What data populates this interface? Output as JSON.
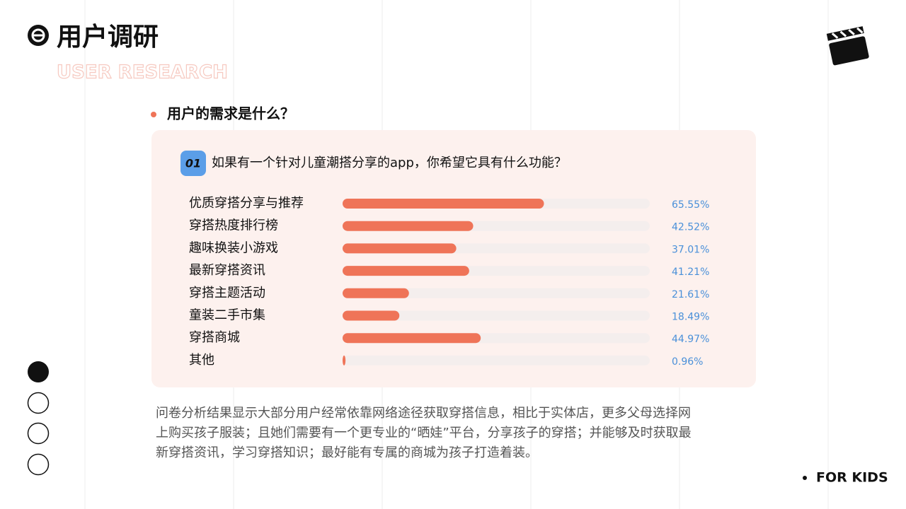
{
  "header": {
    "title": "用户调研",
    "subtitle": "USER RESEARCH"
  },
  "section": {
    "heading": "用户的需求是什么？"
  },
  "question": {
    "number": "01",
    "text": "如果有一个针对儿童潮搭分享的app，你希望它具有什么功能？"
  },
  "chart_data": {
    "type": "bar",
    "orientation": "horizontal",
    "categories": [
      "优质穿搭分享与推荐",
      "穿搭热度排行榜",
      "趣味换装小游戏",
      "最新穿搭资讯",
      "穿搭主题活动",
      "童装二手市集",
      "穿搭商城",
      "其他"
    ],
    "values": [
      65.55,
      42.52,
      37.01,
      41.21,
      21.61,
      18.49,
      44.97,
      0.96
    ],
    "value_labels": [
      "65.55%",
      "42.52%",
      "37.01%",
      "41.21%",
      "21.61%",
      "18.49%",
      "44.97%",
      "0.96%"
    ],
    "xlim": [
      0,
      100
    ],
    "color": "#ef7458",
    "track_color": "#f4eeed",
    "label_color": "#4a90d9"
  },
  "paragraph": {
    "lines": [
      "问卷分析结果显示大部分用户经常依靠网络途径获取穿搭信息，相比于实体店，更多父母选择网",
      "上购买孩子服装；且她们需要有一个更专业的“晒娃”平台，分享孩子的穿搭；并能够及时获取最",
      "新穿搭资讯，学习穿搭知识；最好能有专属的商城为孩子打造着装。"
    ]
  },
  "footer": {
    "tag": "FOR KIDS"
  }
}
